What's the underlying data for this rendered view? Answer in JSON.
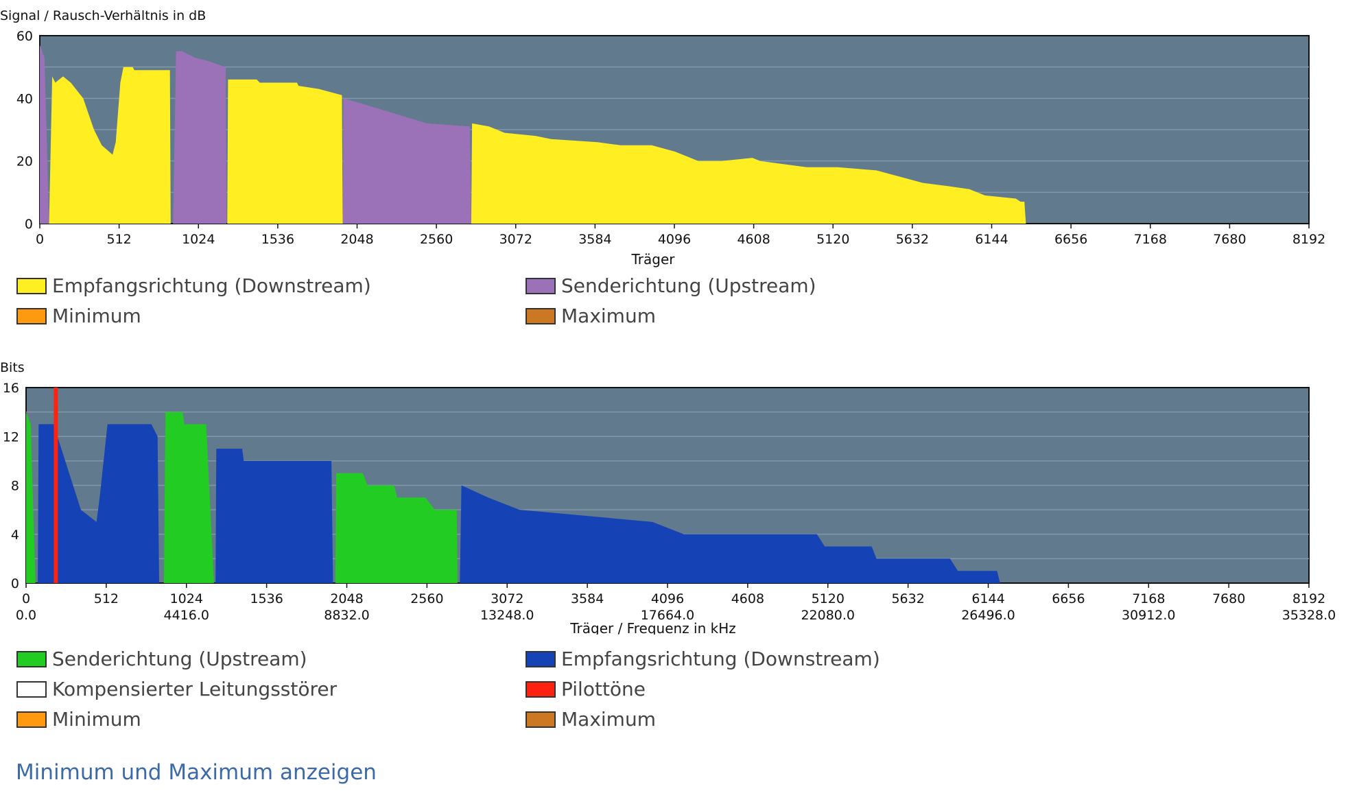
{
  "snr_chart": {
    "ylabel": "Signal / Rausch-Verhältnis in dB",
    "xlabel": "Träger",
    "legend": [
      {
        "label": "Empfangsrichtung (Downstream)",
        "color": "#ffee22"
      },
      {
        "label": "Senderichtung (Upstream)",
        "color": "#9b72b8"
      },
      {
        "label": "Minimum",
        "color": "#ff9a10"
      },
      {
        "label": "Maximum",
        "color": "#cc7722"
      }
    ]
  },
  "bits_chart": {
    "ylabel": "Bits",
    "xlabel": "Träger / Frequenz in kHz",
    "legend": [
      {
        "label": "Senderichtung (Upstream)",
        "color": "#22cc22"
      },
      {
        "label": "Empfangsrichtung (Downstream)",
        "color": "#1542b4"
      },
      {
        "label": "Kompensierter Leitungsstörer",
        "color": "#ffffff"
      },
      {
        "label": "Pilottöne",
        "color": "#ff2211"
      },
      {
        "label": "Minimum",
        "color": "#ff9a10"
      },
      {
        "label": "Maximum",
        "color": "#cc7722"
      }
    ]
  },
  "toggle_link": "Minimum und Maximum anzeigen",
  "chart_data": [
    {
      "type": "area",
      "title": "",
      "xlabel": "Träger",
      "ylabel": "Signal / Rausch-Verhältnis in dB",
      "xlim": [
        0,
        8192
      ],
      "ylim": [
        0,
        60
      ],
      "xticks": [
        0,
        512,
        1024,
        1536,
        2048,
        2560,
        3072,
        3584,
        4096,
        4608,
        5120,
        5632,
        6144,
        6656,
        7168,
        7680,
        8192
      ],
      "yticks": [
        0,
        20,
        40,
        60
      ],
      "background": "#627a8e",
      "grid": true,
      "series": [
        {
          "name": "Senderichtung (Upstream)",
          "color": "#9b72b8",
          "points": [
            [
              0,
              0
            ],
            [
              0,
              57
            ],
            [
              30,
              53
            ],
            [
              60,
              0
            ],
            [
              860,
              0
            ],
            [
              880,
              55
            ],
            [
              920,
              55
            ],
            [
              1000,
              53
            ],
            [
              1080,
              52
            ],
            [
              1200,
              50
            ],
            [
              1205,
              0
            ],
            [
              1955,
              0
            ],
            [
              1960,
              40
            ],
            [
              2100,
              38
            ],
            [
              2300,
              35
            ],
            [
              2500,
              32
            ],
            [
              2775,
              31
            ],
            [
              2785,
              0
            ]
          ]
        },
        {
          "name": "Empfangsrichtung (Downstream)",
          "color": "#ffee22",
          "points": [
            [
              60,
              0
            ],
            [
              80,
              47
            ],
            [
              100,
              45
            ],
            [
              150,
              47
            ],
            [
              200,
              45
            ],
            [
              280,
              40
            ],
            [
              350,
              30
            ],
            [
              400,
              25
            ],
            [
              470,
              22
            ],
            [
              490,
              26
            ],
            [
              520,
              45
            ],
            [
              540,
              50
            ],
            [
              600,
              50
            ],
            [
              610,
              49
            ],
            [
              840,
              49
            ],
            [
              845,
              0
            ],
            [
              1210,
              0
            ],
            [
              1215,
              46
            ],
            [
              1400,
              46
            ],
            [
              1420,
              45
            ],
            [
              1660,
              45
            ],
            [
              1670,
              44
            ],
            [
              1800,
              43
            ],
            [
              1950,
              41
            ],
            [
              1955,
              0
            ],
            [
              2785,
              0
            ],
            [
              2790,
              32
            ],
            [
              2900,
              31
            ],
            [
              3000,
              29
            ],
            [
              3200,
              28
            ],
            [
              3300,
              27
            ],
            [
              3600,
              26
            ],
            [
              3750,
              25
            ],
            [
              3950,
              25
            ],
            [
              4100,
              23
            ],
            [
              4200,
              21
            ],
            [
              4250,
              20
            ],
            [
              4400,
              20
            ],
            [
              4600,
              21
            ],
            [
              4650,
              20
            ],
            [
              4950,
              18
            ],
            [
              5150,
              18
            ],
            [
              5400,
              17
            ],
            [
              5550,
              15
            ],
            [
              5700,
              13
            ],
            [
              5860,
              12
            ],
            [
              6000,
              11
            ],
            [
              6100,
              9
            ],
            [
              6300,
              8
            ],
            [
              6330,
              7
            ],
            [
              6355,
              7
            ],
            [
              6365,
              0
            ]
          ]
        }
      ]
    },
    {
      "type": "area",
      "title": "",
      "xlabel": "Träger / Frequenz in kHz",
      "ylabel": "Bits",
      "xlim": [
        0,
        8192
      ],
      "ylim": [
        0,
        16
      ],
      "xticks": [
        0,
        512,
        1024,
        1536,
        2048,
        2560,
        3072,
        3584,
        4096,
        4608,
        5120,
        5632,
        6144,
        6656,
        7168,
        7680,
        8192
      ],
      "xticks_secondary": [
        "0.0",
        "4416.0",
        "8832.0",
        "13248.0",
        "17664.0",
        "22080.0",
        "26496.0",
        "30912.0",
        "35328.0"
      ],
      "yticks": [
        0,
        4,
        8,
        12,
        16
      ],
      "background": "#627a8e",
      "grid": true,
      "series": [
        {
          "name": "Senderichtung (Upstream)",
          "color": "#22cc22",
          "points": [
            [
              0,
              0
            ],
            [
              0,
              14
            ],
            [
              30,
              13
            ],
            [
              60,
              0
            ],
            [
              880,
              0
            ],
            [
              890,
              14
            ],
            [
              1000,
              14
            ],
            [
              1010,
              13
            ],
            [
              1100,
              13
            ],
            [
              1150,
              13
            ],
            [
              1200,
              0
            ],
            [
              1975,
              0
            ],
            [
              1980,
              9
            ],
            [
              2150,
              9
            ],
            [
              2180,
              8
            ],
            [
              2350,
              8
            ],
            [
              2370,
              7
            ],
            [
              2550,
              7
            ],
            [
              2610,
              6
            ],
            [
              2750,
              6
            ],
            [
              2755,
              0
            ]
          ]
        },
        {
          "name": "Empfangsrichtung (Downstream)",
          "color": "#1542b4",
          "points": [
            [
              75,
              0
            ],
            [
              80,
              13
            ],
            [
              180,
              13
            ],
            [
              200,
              12
            ],
            [
              250,
              10
            ],
            [
              300,
              8
            ],
            [
              350,
              6
            ],
            [
              450,
              5
            ],
            [
              470,
              7
            ],
            [
              520,
              13
            ],
            [
              800,
              13
            ],
            [
              840,
              12
            ],
            [
              850,
              0
            ],
            [
              1210,
              0
            ],
            [
              1215,
              11
            ],
            [
              1380,
              11
            ],
            [
              1390,
              10
            ],
            [
              1650,
              10
            ],
            [
              1660,
              10
            ],
            [
              1950,
              10
            ],
            [
              1960,
              0
            ],
            [
              2770,
              0
            ],
            [
              2780,
              8
            ],
            [
              2950,
              7
            ],
            [
              3150,
              6
            ],
            [
              4000,
              5
            ],
            [
              4200,
              4
            ],
            [
              5050,
              4
            ],
            [
              5100,
              3
            ],
            [
              5400,
              3
            ],
            [
              5430,
              2
            ],
            [
              5900,
              2
            ],
            [
              5950,
              1
            ],
            [
              6200,
              1
            ],
            [
              6220,
              0
            ]
          ]
        },
        {
          "name": "Pilottöne",
          "color": "#ff2211",
          "points": [
            [
              190,
              16
            ],
            [
              190,
              0
            ]
          ]
        }
      ]
    }
  ]
}
